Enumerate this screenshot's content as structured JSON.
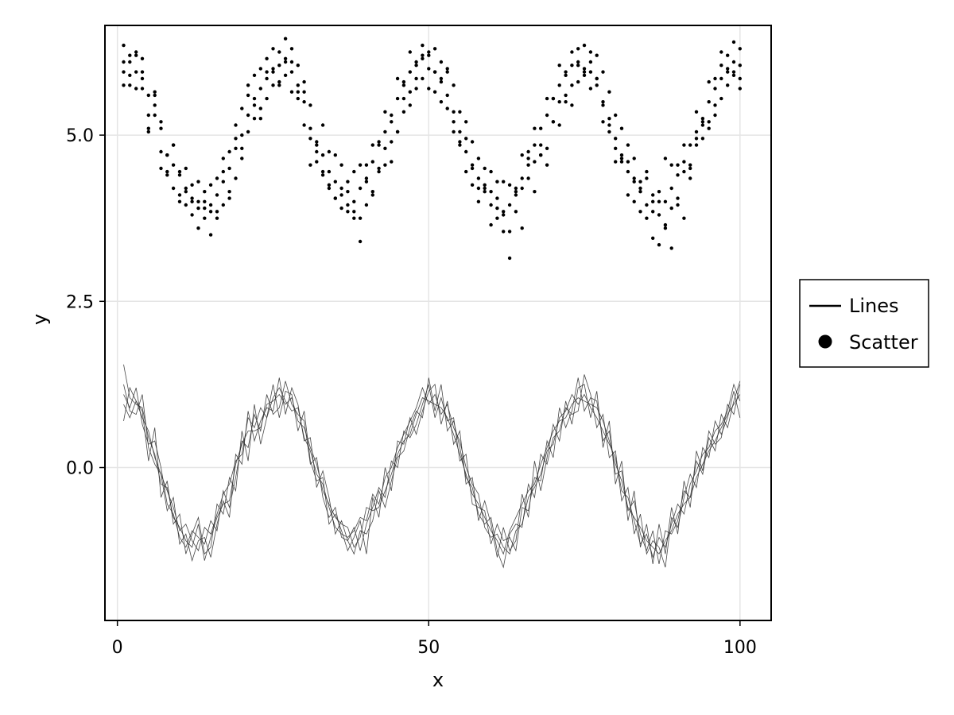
{
  "chart_data": {
    "type": "line",
    "title": "",
    "xlabel": "x",
    "ylabel": "y",
    "xlim": [
      -2,
      105
    ],
    "ylim": [
      -2.3,
      6.65
    ],
    "x_ticks": [
      0,
      50,
      100
    ],
    "x_tick_labels": [
      "0",
      "50",
      "100"
    ],
    "y_ticks": [
      0,
      2.5,
      5
    ],
    "y_tick_labels": [
      "0.0",
      "2.5",
      "5.0"
    ],
    "grid": true,
    "legend_position": "right",
    "legend": [
      {
        "label": "Lines",
        "marker": "line"
      },
      {
        "label": "Scatter",
        "marker": "circle"
      }
    ],
    "x": [
      1,
      2,
      3,
      4,
      5,
      6,
      7,
      8,
      9,
      10,
      11,
      12,
      13,
      14,
      15,
      16,
      17,
      18,
      19,
      20,
      21,
      22,
      23,
      24,
      25,
      26,
      27,
      28,
      29,
      30,
      31,
      32,
      33,
      34,
      35,
      36,
      37,
      38,
      39,
      40,
      41,
      42,
      43,
      44,
      45,
      46,
      47,
      48,
      49,
      50,
      51,
      52,
      53,
      54,
      55,
      56,
      57,
      58,
      59,
      60,
      61,
      62,
      63,
      64,
      65,
      66,
      67,
      68,
      69,
      70,
      71,
      72,
      73,
      74,
      75,
      76,
      77,
      78,
      79,
      80,
      81,
      82,
      83,
      84,
      85,
      86,
      87,
      88,
      89,
      90,
      91,
      92,
      93,
      94,
      95,
      96,
      97,
      98,
      99,
      100
    ],
    "series": [
      {
        "kind": "line",
        "values": [
          1.55,
          1.05,
          0.95,
          0.9,
          0.45,
          0.2,
          -0.25,
          -0.3,
          -0.75,
          -0.9,
          -1.1,
          -1.2,
          -0.85,
          -1.4,
          -1.05,
          -0.75,
          -0.55,
          -0.5,
          0.05,
          0.35,
          0.55,
          0.55,
          0.6,
          0.95,
          1.0,
          1.1,
          0.95,
          1.05,
          0.7,
          0.6,
          0.3,
          0.05,
          -0.35,
          -0.55,
          -0.75,
          -0.85,
          -0.9,
          -1.2,
          -1.05,
          -0.6,
          -0.65,
          -0.6,
          -0.35,
          -0.1,
          0.2,
          0.4,
          0.5,
          0.8,
          1.05,
          1.0,
          0.95,
          0.9,
          0.75,
          0.5,
          0.2,
          -0.1,
          -0.4,
          -0.55,
          -0.75,
          -0.95,
          -1.1,
          -1.3,
          -0.95,
          -0.75,
          -0.55,
          -0.35,
          -0.25,
          0.05,
          0.3,
          0.55,
          0.7,
          0.75,
          0.95,
          1.05,
          1.0,
          0.95,
          0.9,
          0.7,
          0.4,
          0.05,
          -0.2,
          -0.6,
          -0.75,
          -0.9,
          -1.1,
          -1.2,
          -1.3,
          -1.1,
          -0.95,
          -0.7,
          -0.55,
          -0.45,
          -0.15,
          0.05,
          0.25,
          0.4,
          0.6,
          0.8,
          0.95,
          1.1
        ]
      },
      {
        "kind": "line",
        "values": [
          0.7,
          1.2,
          1.0,
          0.75,
          0.55,
          0.15,
          -0.1,
          -0.35,
          -0.6,
          -0.95,
          -0.85,
          -1.1,
          -1.25,
          -0.9,
          -1.0,
          -0.7,
          -0.4,
          -0.25,
          0.1,
          0.2,
          0.75,
          0.6,
          0.9,
          0.75,
          1.05,
          1.2,
          1.0,
          0.85,
          0.9,
          0.45,
          0.25,
          -0.1,
          -0.25,
          -0.6,
          -0.9,
          -1.0,
          -1.05,
          -0.95,
          -0.75,
          -0.8,
          -0.4,
          -0.55,
          -0.15,
          0.0,
          0.3,
          0.5,
          0.7,
          0.9,
          1.2,
          0.95,
          1.1,
          0.8,
          0.95,
          0.6,
          0.4,
          0.0,
          -0.25,
          -0.4,
          -0.9,
          -1.05,
          -1.0,
          -1.2,
          -1.3,
          -0.95,
          -0.85,
          -0.45,
          -0.3,
          -0.1,
          0.25,
          0.35,
          0.75,
          0.85,
          1.1,
          0.95,
          1.1,
          0.9,
          0.75,
          0.55,
          0.35,
          0.15,
          -0.35,
          -0.45,
          -0.8,
          -1.15,
          -1.0,
          -1.35,
          -1.05,
          -1.2,
          -0.85,
          -0.55,
          -0.7,
          -0.25,
          -0.05,
          0.2,
          0.3,
          0.55,
          0.65,
          0.85,
          1.25,
          1.0
        ]
      },
      {
        "kind": "line",
        "values": [
          1.1,
          0.9,
          1.2,
          0.65,
          0.35,
          0.4,
          0.0,
          -0.55,
          -0.7,
          -1.05,
          -1.2,
          -0.95,
          -1.05,
          -1.15,
          -0.8,
          -0.95,
          -0.35,
          -0.6,
          -0.15,
          0.4,
          0.3,
          0.8,
          0.55,
          1.1,
          0.8,
          0.9,
          1.3,
          0.95,
          0.8,
          0.7,
          0.05,
          0.15,
          -0.45,
          -0.75,
          -0.6,
          -1.05,
          -1.1,
          -0.9,
          -1.25,
          -0.85,
          -0.6,
          -0.3,
          -0.45,
          0.1,
          0.0,
          0.55,
          0.45,
          0.65,
          0.95,
          1.25,
          0.75,
          1.05,
          0.7,
          0.75,
          0.1,
          0.2,
          -0.55,
          -0.6,
          -0.65,
          -1.15,
          -0.85,
          -1.1,
          -1.05,
          -1.25,
          -0.6,
          -0.65,
          -0.15,
          -0.2,
          0.4,
          0.15,
          0.9,
          0.6,
          0.85,
          1.35,
          0.85,
          1.05,
          1.0,
          0.4,
          0.55,
          -0.1,
          -0.05,
          -0.65,
          -0.5,
          -1.0,
          -1.25,
          -0.95,
          -1.45,
          -0.95,
          -1.0,
          -0.8,
          -0.35,
          -0.45,
          0.1,
          -0.1,
          0.45,
          0.25,
          0.8,
          0.6,
          1.0,
          1.3
        ]
      },
      {
        "kind": "line",
        "values": [
          0.95,
          0.75,
          1.0,
          0.85,
          0.1,
          0.6,
          -0.45,
          -0.2,
          -0.85,
          -0.7,
          -1.3,
          -1.0,
          -0.75,
          -1.3,
          -1.2,
          -0.55,
          -0.7,
          -0.15,
          -0.35,
          0.55,
          0.1,
          0.95,
          0.35,
          0.75,
          1.25,
          0.75,
          1.15,
          1.1,
          0.55,
          0.85,
          0.1,
          -0.2,
          -0.15,
          -0.85,
          -0.7,
          -0.95,
          -1.25,
          -1.05,
          -0.8,
          -1.3,
          -0.45,
          -0.75,
          0.0,
          -0.35,
          0.4,
          0.35,
          0.75,
          0.5,
          0.85,
          1.15,
          1.25,
          0.65,
          1.0,
          0.35,
          0.55,
          -0.25,
          -0.15,
          -0.8,
          -0.5,
          -0.85,
          -1.35,
          -0.9,
          -1.25,
          -1.1,
          -0.4,
          -0.75,
          0.1,
          -0.35,
          0.15,
          0.65,
          0.4,
          1.0,
          0.65,
          1.2,
          1.25,
          0.75,
          1.15,
          0.3,
          0.7,
          -0.25,
          0.1,
          -0.8,
          -0.35,
          -1.2,
          -0.85,
          -1.45,
          -0.85,
          -1.3,
          -0.6,
          -1.0,
          -0.2,
          -0.6,
          0.25,
          -0.05,
          0.55,
          0.35,
          0.45,
          0.95,
          0.8,
          1.25
        ]
      },
      {
        "kind": "line",
        "values": [
          1.25,
          0.85,
          0.8,
          1.1,
          0.3,
          0.05,
          -0.1,
          -0.65,
          -0.45,
          -1.15,
          -1.0,
          -1.4,
          -1.1,
          -1.05,
          -1.35,
          -0.85,
          -0.5,
          -0.75,
          0.2,
          0.05,
          0.85,
          0.4,
          0.7,
          0.9,
          0.85,
          1.35,
          0.8,
          1.2,
          0.95,
          0.4,
          0.45,
          -0.3,
          -0.05,
          -0.45,
          -1.0,
          -0.8,
          -1.1,
          -1.3,
          -0.95,
          -1.0,
          -0.8,
          -0.35,
          -0.6,
          -0.2,
          0.15,
          0.25,
          0.6,
          0.85,
          0.75,
          1.35,
          0.85,
          1.25,
          0.55,
          0.7,
          0.3,
          -0.15,
          -0.3,
          -0.7,
          -0.85,
          -0.75,
          -1.25,
          -1.5,
          -1.0,
          -0.85,
          -0.9,
          -0.25,
          -0.45,
          0.2,
          0.05,
          0.45,
          0.55,
          0.9,
          0.8,
          0.85,
          1.4,
          1.1,
          0.6,
          0.8,
          0.15,
          0.25,
          -0.5,
          -0.3,
          -1.0,
          -0.7,
          -1.3,
          -1.1,
          -1.2,
          -1.5,
          -0.75,
          -0.9,
          -0.45,
          -0.1,
          -0.3,
          0.3,
          0.15,
          0.7,
          0.5,
          0.75,
          1.15,
          0.75
        ]
      },
      {
        "kind": "scatter",
        "values": [
          6.1,
          5.9,
          5.95,
          5.85,
          5.6,
          5.3,
          5.1,
          4.7,
          4.55,
          4.4,
          4.2,
          4.05,
          4.0,
          3.9,
          3.95,
          4.1,
          4.3,
          4.5,
          4.8,
          5.0,
          5.3,
          5.55,
          5.7,
          5.85,
          6.0,
          6.05,
          6.1,
          5.95,
          5.75,
          5.5,
          5.1,
          4.9,
          4.7,
          4.45,
          4.3,
          4.1,
          3.95,
          4.0,
          4.2,
          4.35,
          4.6,
          4.85,
          5.05,
          5.3,
          5.55,
          5.8,
          5.95,
          6.1,
          6.15,
          6.0,
          5.95,
          5.8,
          5.6,
          5.35,
          5.05,
          4.75,
          4.5,
          4.35,
          4.15,
          3.95,
          3.9,
          3.8,
          3.95,
          4.15,
          4.35,
          4.65,
          4.85,
          5.1,
          5.3,
          5.55,
          5.75,
          5.9,
          6.05,
          6.1,
          6.0,
          5.95,
          5.75,
          5.5,
          5.25,
          4.95,
          4.7,
          4.45,
          4.3,
          4.15,
          3.95,
          3.85,
          3.8,
          4.0,
          4.2,
          4.4,
          4.6,
          4.85,
          5.05,
          5.25,
          5.5,
          5.7,
          5.85,
          6.0,
          6.1,
          6.05
        ]
      },
      {
        "kind": "scatter",
        "values": [
          5.75,
          6.2,
          5.7,
          6.15,
          5.3,
          5.6,
          4.75,
          4.4,
          4.85,
          4.1,
          4.5,
          3.8,
          4.3,
          3.75,
          4.25,
          3.85,
          4.65,
          4.15,
          5.15,
          4.65,
          5.6,
          5.25,
          6.0,
          5.55,
          6.3,
          5.75,
          6.45,
          5.65,
          6.05,
          5.15,
          5.45,
          4.6,
          5.15,
          4.2,
          4.7,
          3.9,
          4.3,
          3.75,
          4.55,
          3.95,
          4.85,
          4.45,
          5.35,
          4.9,
          5.85,
          5.55,
          6.25,
          5.7,
          6.35,
          5.7,
          6.3,
          5.5,
          6.0,
          5.05,
          5.35,
          4.45,
          4.9,
          4.0,
          4.5,
          3.65,
          4.3,
          3.55,
          4.25,
          3.85,
          4.7,
          4.35,
          5.1,
          4.7,
          5.55,
          5.2,
          6.05,
          5.5,
          6.25,
          5.8,
          6.35,
          5.7,
          6.2,
          5.2,
          5.65,
          4.6,
          5.1,
          4.1,
          4.65,
          3.85,
          4.45,
          3.45,
          4.15,
          3.65,
          4.55,
          3.95,
          4.85,
          4.55,
          5.35,
          4.95,
          5.8,
          5.3,
          6.25,
          5.75,
          6.4,
          5.7
        ]
      },
      {
        "kind": "scatter",
        "values": [
          6.35,
          5.75,
          6.2,
          5.95,
          5.1,
          5.65,
          4.5,
          4.7,
          4.2,
          4.45,
          3.95,
          4.25,
          3.6,
          4.15,
          3.5,
          4.35,
          3.95,
          4.75,
          4.35,
          5.4,
          5.05,
          5.9,
          5.25,
          5.95,
          5.75,
          6.25,
          5.9,
          6.3,
          5.55,
          5.8,
          4.95,
          4.85,
          4.45,
          4.75,
          4.05,
          4.55,
          3.85,
          4.45,
          3.4,
          4.3,
          4.15,
          4.9,
          4.55,
          5.2,
          5.05,
          5.75,
          5.45,
          6.05,
          5.85,
          6.25,
          5.95,
          6.1,
          5.4,
          5.75,
          4.85,
          5.2,
          4.25,
          4.65,
          4.2,
          4.45,
          3.75,
          4.3,
          3.15,
          4.2,
          3.6,
          4.55,
          4.15,
          4.85,
          4.55,
          5.55,
          5.15,
          5.95,
          5.45,
          6.3,
          5.95,
          6.1,
          5.85,
          5.95,
          5.05,
          5.3,
          4.6,
          4.85,
          4.0,
          4.3,
          3.75,
          4.0,
          3.35,
          3.6,
          3.3,
          4.55,
          3.75,
          4.5,
          4.85,
          5.2,
          5.1,
          5.85,
          5.55,
          6.2,
          5.9,
          6.3
        ]
      },
      {
        "kind": "scatter",
        "values": [
          5.95,
          6.1,
          6.25,
          5.7,
          5.05,
          5.45,
          5.2,
          4.45,
          4.85,
          4.0,
          4.15,
          4.0,
          3.9,
          4.0,
          3.85,
          3.75,
          4.45,
          4.05,
          4.95,
          4.8,
          5.75,
          5.45,
          5.4,
          6.15,
          5.95,
          5.8,
          6.15,
          6.1,
          5.65,
          5.65,
          4.55,
          4.75,
          4.4,
          4.25,
          4.05,
          4.2,
          4.15,
          3.85,
          3.75,
          4.55,
          4.1,
          4.5,
          4.8,
          4.6,
          5.05,
          5.35,
          5.65,
          5.85,
          6.2,
          6.2,
          5.65,
          5.85,
          5.95,
          5.2,
          4.9,
          4.95,
          4.55,
          4.2,
          4.25,
          4.15,
          4.05,
          3.85,
          3.55,
          4.1,
          4.2,
          4.75,
          4.6,
          4.7,
          4.8,
          5.2,
          5.5,
          5.6,
          5.75,
          6.05,
          5.9,
          6.25,
          5.85,
          5.45,
          5.15,
          4.8,
          4.65,
          4.6,
          4.35,
          4.2,
          4.35,
          4.1,
          4.0,
          4.65,
          3.9,
          4.05,
          4.45,
          4.35,
          4.95,
          5.15,
          5.2,
          5.45,
          6.05,
          5.95,
          5.95,
          5.85
        ]
      }
    ]
  },
  "legend": {
    "lines_label": "Lines",
    "scatter_label": "Scatter"
  },
  "axes": {
    "xlabel": "x",
    "ylabel": "y"
  },
  "colors": {
    "line": "#333333",
    "point": "#000000",
    "grid": "#e5e5e5"
  }
}
